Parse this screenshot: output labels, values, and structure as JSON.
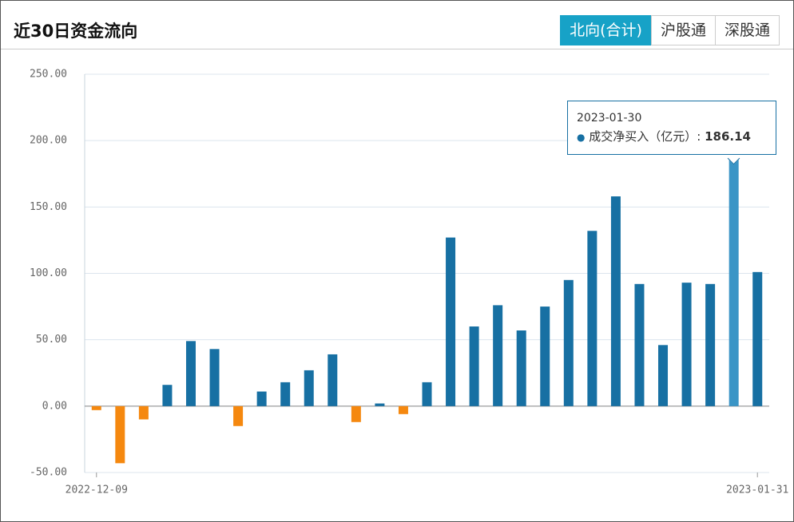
{
  "header": {
    "title": "近30日资金流向",
    "tabs": [
      "北向(合计)",
      "沪股通",
      "深股通"
    ]
  },
  "chart_data": {
    "type": "bar",
    "categories": [
      "2022-12-09",
      null,
      null,
      null,
      null,
      null,
      null,
      null,
      null,
      null,
      null,
      null,
      null,
      null,
      null,
      null,
      null,
      null,
      null,
      null,
      null,
      null,
      null,
      null,
      null,
      null,
      null,
      null,
      "2023-01-31"
    ],
    "series": [
      {
        "name": "成交净买入（亿元）",
        "color": "#1770a3",
        "negative_color": "#f5880f",
        "values": [
          -3,
          -43,
          -10,
          16,
          49,
          43,
          -15,
          11,
          18,
          27,
          39,
          -12,
          2,
          -6,
          18,
          127,
          60,
          76,
          57,
          75,
          95,
          132,
          158,
          92,
          46,
          93,
          92,
          186.14,
          101
        ]
      }
    ],
    "ylim": [
      -50,
      250
    ],
    "yticks": [
      {
        "value": -50,
        "label": "-50.00"
      },
      {
        "value": 0,
        "label": "0.00"
      },
      {
        "value": 50,
        "label": "50.00"
      },
      {
        "value": 100,
        "label": "100.00"
      },
      {
        "value": 150,
        "label": "150.00"
      },
      {
        "value": 200,
        "label": "200.00"
      },
      {
        "value": 250,
        "label": "250.00"
      }
    ],
    "grid": true,
    "tooltip": {
      "title": "2023-01-30",
      "series": 0,
      "point": 27,
      "color": "#3a95c6"
    }
  }
}
